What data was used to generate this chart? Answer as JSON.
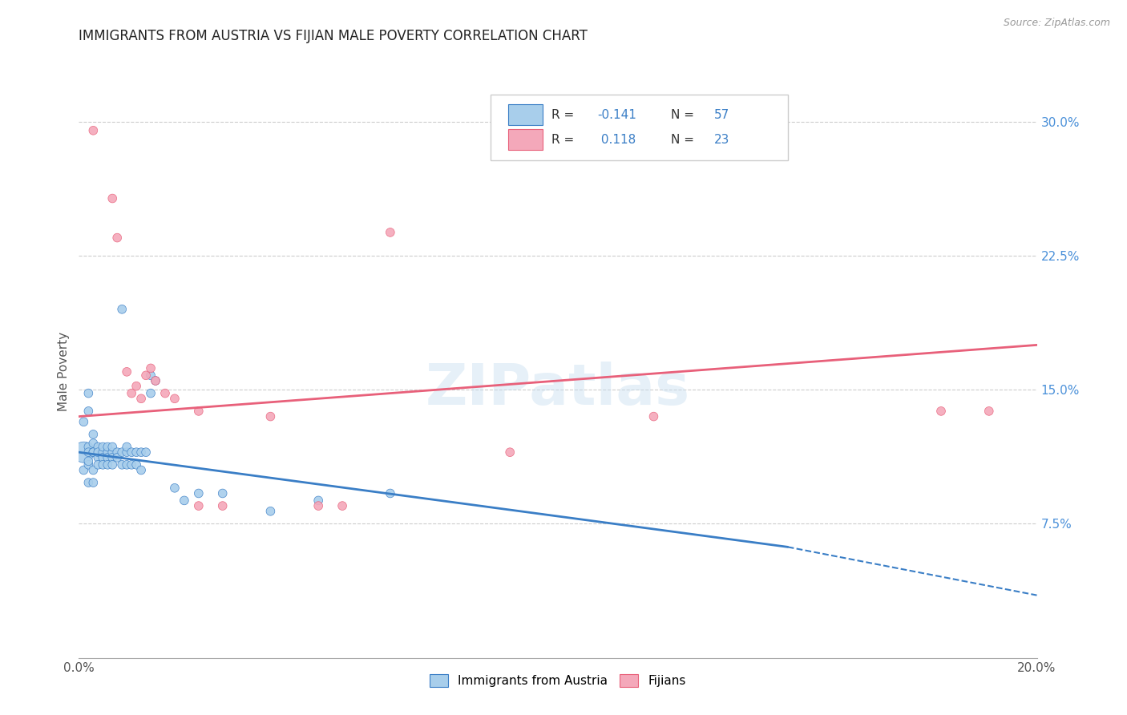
{
  "title": "IMMIGRANTS FROM AUSTRIA VS FIJIAN MALE POVERTY CORRELATION CHART",
  "source": "Source: ZipAtlas.com",
  "ylabel": "Male Poverty",
  "xlim": [
    0.0,
    0.2
  ],
  "ylim": [
    0.0,
    0.32
  ],
  "blue_color": "#A8CEEB",
  "pink_color": "#F4A8BA",
  "line_blue": "#3A7EC6",
  "line_pink": "#E8607A",
  "watermark": "ZIPatlas",
  "blue_line_x0": 0.0,
  "blue_line_y0": 0.115,
  "blue_line_x1": 0.148,
  "blue_line_y1": 0.062,
  "blue_line_dash_x1": 0.2,
  "blue_line_dash_y1": 0.035,
  "pink_line_x0": 0.0,
  "pink_line_y0": 0.135,
  "pink_line_x1": 0.2,
  "pink_line_y1": 0.175,
  "austria_points": [
    [
      0.001,
      0.115
    ],
    [
      0.001,
      0.132
    ],
    [
      0.001,
      0.105
    ],
    [
      0.002,
      0.138
    ],
    [
      0.002,
      0.108
    ],
    [
      0.002,
      0.098
    ],
    [
      0.002,
      0.118
    ],
    [
      0.002,
      0.115
    ],
    [
      0.002,
      0.11
    ],
    [
      0.003,
      0.12
    ],
    [
      0.003,
      0.115
    ],
    [
      0.003,
      0.105
    ],
    [
      0.003,
      0.115
    ],
    [
      0.003,
      0.125
    ],
    [
      0.004,
      0.118
    ],
    [
      0.004,
      0.112
    ],
    [
      0.004,
      0.108
    ],
    [
      0.004,
      0.115
    ],
    [
      0.005,
      0.115
    ],
    [
      0.005,
      0.112
    ],
    [
      0.005,
      0.118
    ],
    [
      0.005,
      0.108
    ],
    [
      0.006,
      0.115
    ],
    [
      0.006,
      0.112
    ],
    [
      0.006,
      0.118
    ],
    [
      0.006,
      0.108
    ],
    [
      0.007,
      0.115
    ],
    [
      0.007,
      0.112
    ],
    [
      0.007,
      0.118
    ],
    [
      0.007,
      0.108
    ],
    [
      0.008,
      0.115
    ],
    [
      0.008,
      0.112
    ],
    [
      0.009,
      0.115
    ],
    [
      0.009,
      0.108
    ],
    [
      0.009,
      0.195
    ],
    [
      0.01,
      0.115
    ],
    [
      0.01,
      0.108
    ],
    [
      0.01,
      0.118
    ],
    [
      0.011,
      0.115
    ],
    [
      0.011,
      0.108
    ],
    [
      0.012,
      0.115
    ],
    [
      0.012,
      0.108
    ],
    [
      0.013,
      0.115
    ],
    [
      0.013,
      0.105
    ],
    [
      0.014,
      0.115
    ],
    [
      0.015,
      0.148
    ],
    [
      0.015,
      0.158
    ],
    [
      0.016,
      0.155
    ],
    [
      0.02,
      0.095
    ],
    [
      0.022,
      0.088
    ],
    [
      0.025,
      0.092
    ],
    [
      0.03,
      0.092
    ],
    [
      0.04,
      0.082
    ],
    [
      0.05,
      0.088
    ],
    [
      0.065,
      0.092
    ],
    [
      0.002,
      0.148
    ],
    [
      0.003,
      0.098
    ]
  ],
  "austria_sizes": [
    350,
    60,
    60,
    60,
    60,
    60,
    60,
    60,
    60,
    60,
    60,
    60,
    60,
    60,
    60,
    60,
    60,
    60,
    60,
    60,
    60,
    60,
    60,
    60,
    60,
    60,
    60,
    60,
    60,
    60,
    60,
    60,
    60,
    60,
    60,
    60,
    60,
    60,
    60,
    60,
    60,
    60,
    60,
    60,
    60,
    60,
    60,
    60,
    60,
    60,
    60,
    60,
    60,
    60,
    60,
    60,
    60
  ],
  "fijian_points": [
    [
      0.003,
      0.295
    ],
    [
      0.007,
      0.257
    ],
    [
      0.008,
      0.235
    ],
    [
      0.01,
      0.16
    ],
    [
      0.011,
      0.148
    ],
    [
      0.012,
      0.152
    ],
    [
      0.013,
      0.145
    ],
    [
      0.014,
      0.158
    ],
    [
      0.015,
      0.162
    ],
    [
      0.016,
      0.155
    ],
    [
      0.018,
      0.148
    ],
    [
      0.02,
      0.145
    ],
    [
      0.025,
      0.138
    ],
    [
      0.025,
      0.085
    ],
    [
      0.03,
      0.085
    ],
    [
      0.04,
      0.135
    ],
    [
      0.05,
      0.085
    ],
    [
      0.055,
      0.085
    ],
    [
      0.065,
      0.238
    ],
    [
      0.09,
      0.115
    ],
    [
      0.12,
      0.135
    ],
    [
      0.18,
      0.138
    ],
    [
      0.19,
      0.138
    ]
  ],
  "fijian_sizes": [
    60,
    60,
    60,
    60,
    60,
    60,
    60,
    60,
    60,
    60,
    60,
    60,
    60,
    60,
    60,
    60,
    60,
    60,
    60,
    60,
    60,
    60,
    60
  ]
}
